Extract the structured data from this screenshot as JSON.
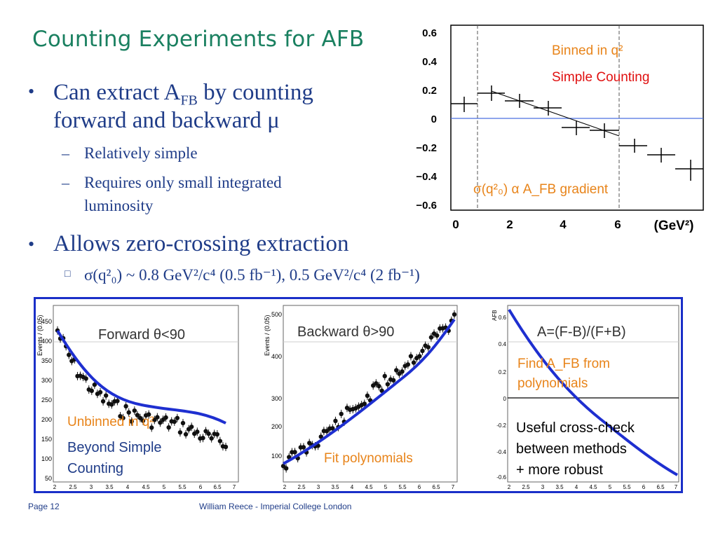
{
  "title": "Counting Experiments for AFB",
  "bullets": {
    "b1_line1_pre": "Can extract A",
    "b1_line1_sub": "FB",
    "b1_line1_post": " by counting",
    "b1_line2": "forward and backward μ",
    "b1_sub1": "Relatively simple",
    "b1_sub2_line1": "Requires only small integrated",
    "b1_sub2_line2": "luminosity",
    "b2": "Allows zero-crossing extraction",
    "b2_sub": "σ(q²₀) ~ 0.8 GeV²/c⁴ (0.5 fb⁻¹), 0.5 GeV²/c⁴ (2 fb⁻¹)",
    "bullet_char": "•",
    "dash_char": "–",
    "box_char": "□"
  },
  "top_chart": {
    "label_binned": "Binned in q²",
    "label_counting": "Simple Counting",
    "label_gradient": "σ(q²₀) α A_FB gradient",
    "y_ticks": [
      "0.6",
      "0.4",
      "0.2",
      "0",
      "−0.2",
      "−0.4",
      "−0.6"
    ],
    "x_ticks": [
      "0",
      "2",
      "4",
      "6"
    ],
    "x_unit": "(GeV²)"
  },
  "panels": {
    "forward_title": "Forward θ<90",
    "backward_title": "Backward θ>90",
    "afb_title": "A=(F-B)/(F+B)",
    "unbinned": "Unbinned in q²",
    "beyond": "Beyond Simple",
    "counting": "Counting",
    "fit_poly": "Fit polynomials",
    "find_afb_1": "Find A_FB from",
    "find_afb_2": "polynomials",
    "cross_1": "Useful cross-check",
    "cross_2": "between methods",
    "cross_3": "+ more robust",
    "fwd_y_axis": "Events / (0.05)",
    "bwd_y_axis": "Events / (0.05)",
    "afb_y_axis": "AFB",
    "fwd_y_ticks": [
      "450",
      "400",
      "350",
      "300",
      "250",
      "200",
      "150",
      "100",
      "50"
    ],
    "bwd_y_ticks": [
      "500",
      "400",
      "300",
      "200",
      "100"
    ],
    "afb_y_ticks": [
      "0.6",
      "0.4",
      "0.2",
      "0",
      "-0.2",
      "-0.4",
      "-0.6"
    ],
    "x_ticks": [
      "2",
      "2.5",
      "3",
      "3.5",
      "4",
      "4.5",
      "5",
      "5.5",
      "6",
      "6.5",
      "7"
    ]
  },
  "footer": {
    "page": "Page 12",
    "author": "William Reece - Imperial College London"
  },
  "colors": {
    "title": "#1a8060",
    "text": "#1f3c88",
    "orange": "#e8841a",
    "red": "#e01010",
    "fit_blue": "#1e2fd0",
    "frame_blue": "#1a2fc8"
  }
}
